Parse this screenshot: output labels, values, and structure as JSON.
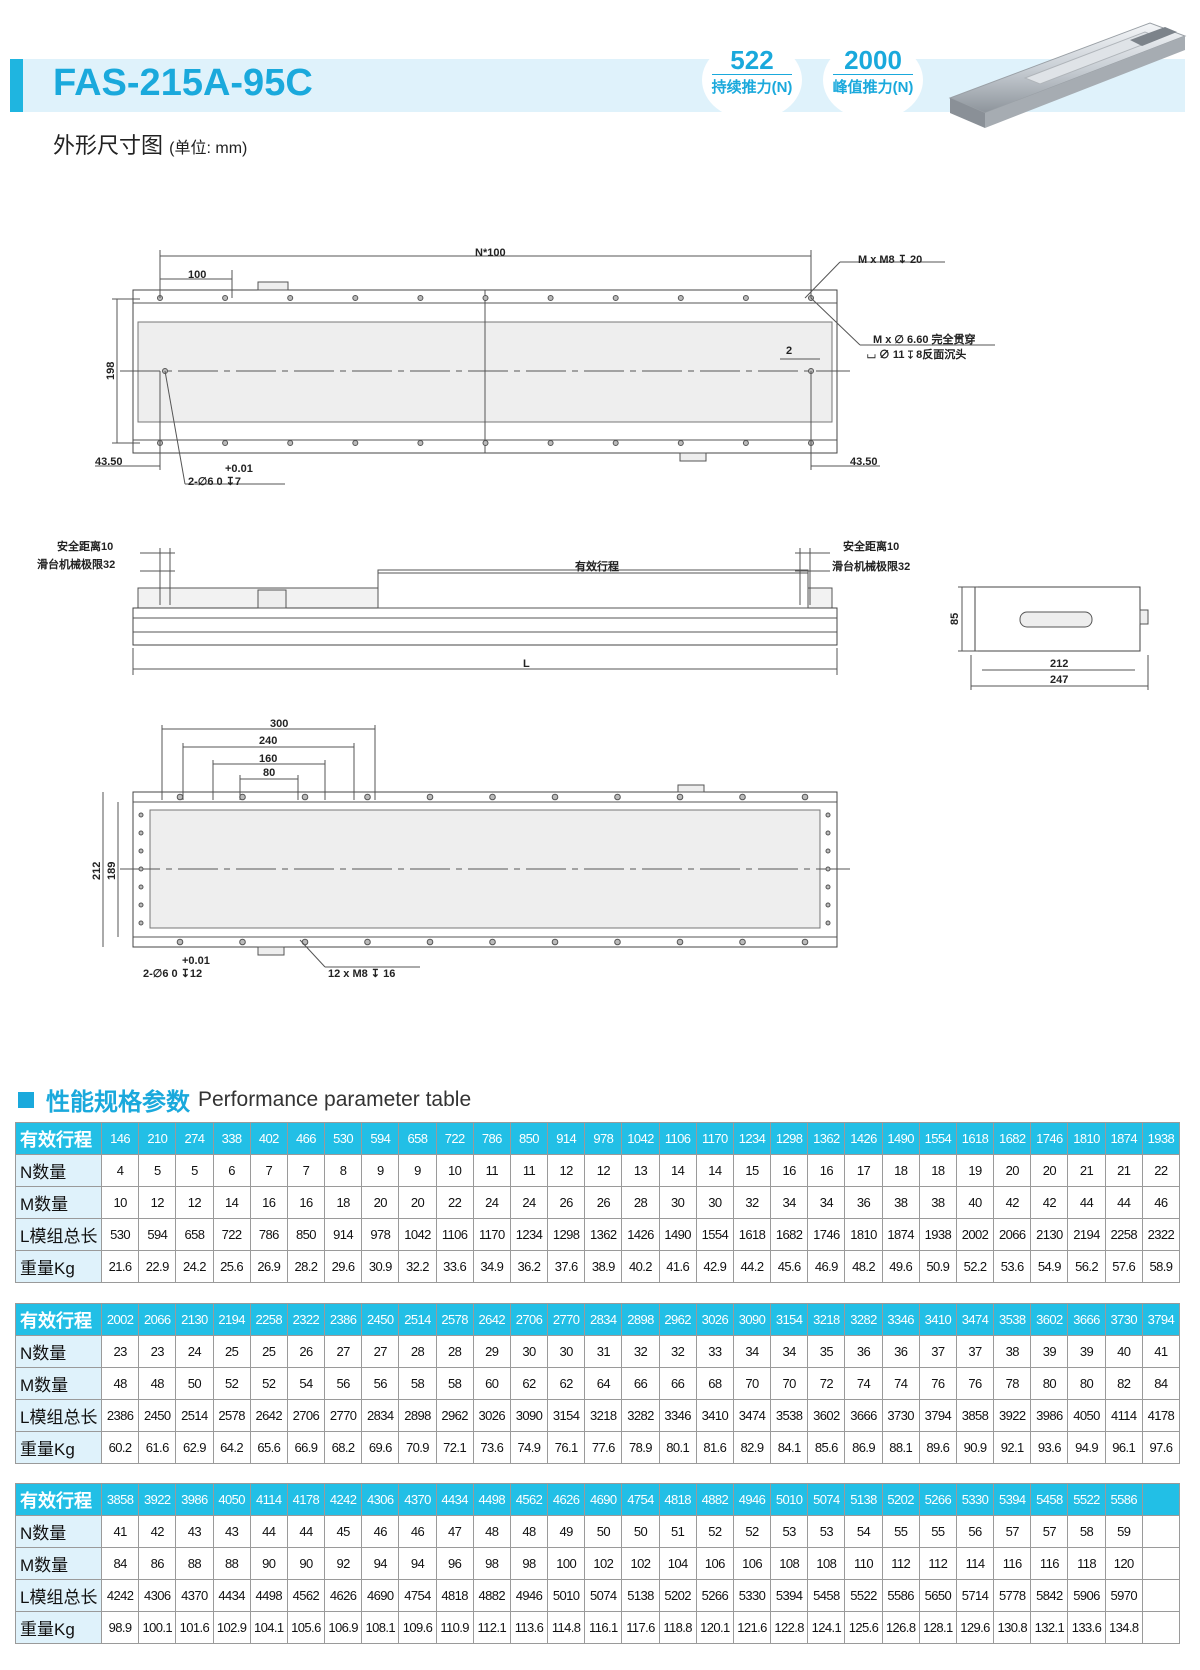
{
  "header": {
    "model": "FAS-215A-95C",
    "badges": [
      {
        "value": "522",
        "label": "持续推力(N)"
      },
      {
        "value": "2000",
        "label": "峰值推力(N)"
      }
    ],
    "accent": "#1aa9dc"
  },
  "subtitle": {
    "main": "外形尺寸图",
    "unit": "(单位: mm)"
  },
  "drawing_top": {
    "n_dim": "N*100",
    "pitch": "100",
    "m_thread": "M x M8 ↧ 20",
    "m_hole": "M x ∅ 6.60 完全贯穿",
    "m_counterbore": "⌴ ∅ 11 ↧ 8反面沉头",
    "offset": "2",
    "height": "198",
    "left_edge": "43.50",
    "right_edge": "43.50",
    "tol": "+0.01",
    "pin": "2-∅6   0    ↧7"
  },
  "drawing_side": {
    "safe_left": "安全距离10",
    "limit_left": "滑台机械极限32",
    "stroke": "有效行程",
    "safe_right": "安全距离10",
    "limit_right": "滑台机械极限32",
    "length": "L"
  },
  "drawing_end": {
    "height": "85",
    "inner_width": "212",
    "outer_width": "247"
  },
  "drawing_bottom": {
    "d300": "300",
    "d240": "240",
    "d160": "160",
    "d80": "80",
    "w212": "212",
    "w189": "189",
    "tol": "+0.01",
    "pin": "2-∅6   0   ↧12",
    "thread": "12 x M8 ↧ 16"
  },
  "section": {
    "title_cn": "性能规格参数",
    "title_en": "Performance parameter table"
  },
  "row_labels": [
    "有效行程",
    "N数量",
    "M数量",
    "L模组总长",
    "重量Kg"
  ],
  "tables": [
    {
      "stroke": [
        "146",
        "210",
        "274",
        "338",
        "402",
        "466",
        "530",
        "594",
        "658",
        "722",
        "786",
        "850",
        "914",
        "978",
        "1042",
        "1106",
        "1170",
        "1234",
        "1298",
        "1362",
        "1426",
        "1490",
        "1554",
        "1618",
        "1682",
        "1746",
        "1810",
        "1874",
        "1938"
      ],
      "n": [
        "4",
        "5",
        "5",
        "6",
        "7",
        "7",
        "8",
        "9",
        "9",
        "10",
        "11",
        "11",
        "12",
        "12",
        "13",
        "14",
        "14",
        "15",
        "16",
        "16",
        "17",
        "18",
        "18",
        "19",
        "20",
        "20",
        "21",
        "21",
        "22"
      ],
      "m": [
        "10",
        "12",
        "12",
        "14",
        "16",
        "16",
        "18",
        "20",
        "20",
        "22",
        "24",
        "24",
        "26",
        "26",
        "28",
        "30",
        "30",
        "32",
        "34",
        "34",
        "36",
        "38",
        "38",
        "40",
        "42",
        "42",
        "44",
        "44",
        "46"
      ],
      "l": [
        "530",
        "594",
        "658",
        "722",
        "786",
        "850",
        "914",
        "978",
        "1042",
        "1106",
        "1170",
        "1234",
        "1298",
        "1362",
        "1426",
        "1490",
        "1554",
        "1618",
        "1682",
        "1746",
        "1810",
        "1874",
        "1938",
        "2002",
        "2066",
        "2130",
        "2194",
        "2258",
        "2322"
      ],
      "kg": [
        "21.6",
        "22.9",
        "24.2",
        "25.6",
        "26.9",
        "28.2",
        "29.6",
        "30.9",
        "32.2",
        "33.6",
        "34.9",
        "36.2",
        "37.6",
        "38.9",
        "40.2",
        "41.6",
        "42.9",
        "44.2",
        "45.6",
        "46.9",
        "48.2",
        "49.6",
        "50.9",
        "52.2",
        "53.6",
        "54.9",
        "56.2",
        "57.6",
        "58.9"
      ]
    },
    {
      "stroke": [
        "2002",
        "2066",
        "2130",
        "2194",
        "2258",
        "2322",
        "2386",
        "2450",
        "2514",
        "2578",
        "2642",
        "2706",
        "2770",
        "2834",
        "2898",
        "2962",
        "3026",
        "3090",
        "3154",
        "3218",
        "3282",
        "3346",
        "3410",
        "3474",
        "3538",
        "3602",
        "3666",
        "3730",
        "3794"
      ],
      "n": [
        "23",
        "23",
        "24",
        "25",
        "25",
        "26",
        "27",
        "27",
        "28",
        "28",
        "29",
        "30",
        "30",
        "31",
        "32",
        "32",
        "33",
        "34",
        "34",
        "35",
        "36",
        "36",
        "37",
        "37",
        "38",
        "39",
        "39",
        "40",
        "41"
      ],
      "m": [
        "48",
        "48",
        "50",
        "52",
        "52",
        "54",
        "56",
        "56",
        "58",
        "58",
        "60",
        "62",
        "62",
        "64",
        "66",
        "66",
        "68",
        "70",
        "70",
        "72",
        "74",
        "74",
        "76",
        "76",
        "78",
        "80",
        "80",
        "82",
        "84"
      ],
      "l": [
        "2386",
        "2450",
        "2514",
        "2578",
        "2642",
        "2706",
        "2770",
        "2834",
        "2898",
        "2962",
        "3026",
        "3090",
        "3154",
        "3218",
        "3282",
        "3346",
        "3410",
        "3474",
        "3538",
        "3602",
        "3666",
        "3730",
        "3794",
        "3858",
        "3922",
        "3986",
        "4050",
        "4114",
        "4178"
      ],
      "kg": [
        "60.2",
        "61.6",
        "62.9",
        "64.2",
        "65.6",
        "66.9",
        "68.2",
        "69.6",
        "70.9",
        "72.1",
        "73.6",
        "74.9",
        "76.1",
        "77.6",
        "78.9",
        "80.1",
        "81.6",
        "82.9",
        "84.1",
        "85.6",
        "86.9",
        "88.1",
        "89.6",
        "90.9",
        "92.1",
        "93.6",
        "94.9",
        "96.1",
        "97.6"
      ]
    },
    {
      "stroke": [
        "3858",
        "3922",
        "3986",
        "4050",
        "4114",
        "4178",
        "4242",
        "4306",
        "4370",
        "4434",
        "4498",
        "4562",
        "4626",
        "4690",
        "4754",
        "4818",
        "4882",
        "4946",
        "5010",
        "5074",
        "5138",
        "5202",
        "5266",
        "5330",
        "5394",
        "5458",
        "5522",
        "5586",
        ""
      ],
      "n": [
        "41",
        "42",
        "43",
        "43",
        "44",
        "44",
        "45",
        "46",
        "46",
        "47",
        "48",
        "48",
        "49",
        "50",
        "50",
        "51",
        "52",
        "52",
        "53",
        "53",
        "54",
        "55",
        "55",
        "56",
        "57",
        "57",
        "58",
        "59",
        ""
      ],
      "m": [
        "84",
        "86",
        "88",
        "88",
        "90",
        "90",
        "92",
        "94",
        "94",
        "96",
        "98",
        "98",
        "100",
        "102",
        "102",
        "104",
        "106",
        "106",
        "108",
        "108",
        "110",
        "112",
        "112",
        "114",
        "116",
        "116",
        "118",
        "120",
        ""
      ],
      "l": [
        "4242",
        "4306",
        "4370",
        "4434",
        "4498",
        "4562",
        "4626",
        "4690",
        "4754",
        "4818",
        "4882",
        "4946",
        "5010",
        "5074",
        "5138",
        "5202",
        "5266",
        "5330",
        "5394",
        "5458",
        "5522",
        "5586",
        "5650",
        "5714",
        "5778",
        "5842",
        "5906",
        "5970",
        ""
      ],
      "kg": [
        "98.9",
        "100.1",
        "101.6",
        "102.9",
        "104.1",
        "105.6",
        "106.9",
        "108.1",
        "109.6",
        "110.9",
        "112.1",
        "113.6",
        "114.8",
        "116.1",
        "117.6",
        "118.8",
        "120.1",
        "121.6",
        "122.8",
        "124.1",
        "125.6",
        "126.8",
        "128.1",
        "129.6",
        "130.8",
        "132.1",
        "133.6",
        "134.8",
        ""
      ]
    }
  ]
}
